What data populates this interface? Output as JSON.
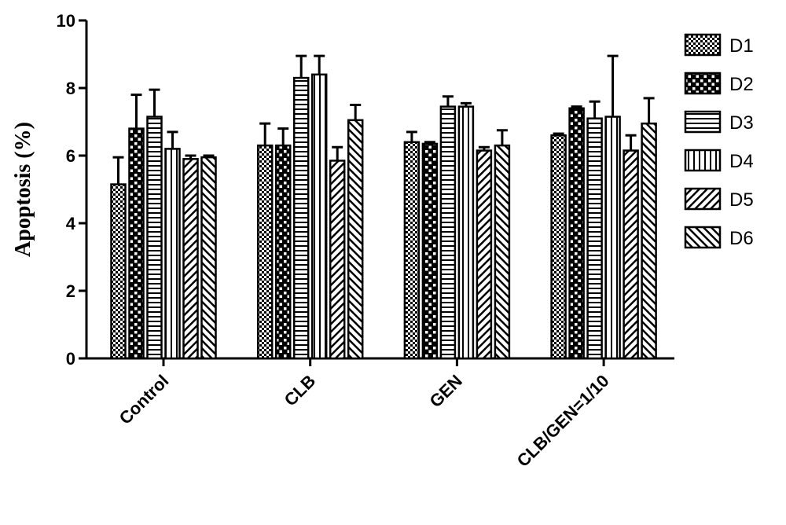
{
  "chart_data": {
    "type": "bar",
    "ylabel": "Apoptosis (%)",
    "xlabel": "",
    "ylim": [
      0,
      10
    ],
    "yticks": [
      "0",
      "2",
      "4",
      "6",
      "8",
      "10"
    ],
    "categories": [
      "Control",
      "CLB",
      "GEN",
      "CLB/GEN=1/10"
    ],
    "legend_position": "right",
    "grid": false,
    "series": [
      {
        "name": "D1",
        "pattern": "checker",
        "values": [
          5.15,
          6.3,
          6.4,
          6.6
        ],
        "errors": [
          0.8,
          0.65,
          0.3,
          0.05
        ]
      },
      {
        "name": "D2",
        "pattern": "dots-lattice",
        "values": [
          6.8,
          6.3,
          6.35,
          7.4
        ],
        "errors": [
          1.0,
          0.5,
          0.05,
          0.05
        ]
      },
      {
        "name": "D3",
        "pattern": "horizontal",
        "values": [
          7.15,
          8.3,
          7.45,
          7.1
        ],
        "errors": [
          0.8,
          0.65,
          0.3,
          0.5
        ]
      },
      {
        "name": "D4",
        "pattern": "vertical",
        "values": [
          6.2,
          8.4,
          7.45,
          7.15
        ],
        "errors": [
          0.5,
          0.55,
          0.1,
          1.8
        ]
      },
      {
        "name": "D5",
        "pattern": "diagonal-up",
        "values": [
          5.9,
          5.85,
          6.15,
          6.15
        ],
        "errors": [
          0.1,
          0.4,
          0.1,
          0.45
        ]
      },
      {
        "name": "D6",
        "pattern": "diagonal-down",
        "values": [
          5.95,
          7.05,
          6.3,
          6.95
        ],
        "errors": [
          0.05,
          0.45,
          0.45,
          0.75
        ]
      }
    ]
  }
}
